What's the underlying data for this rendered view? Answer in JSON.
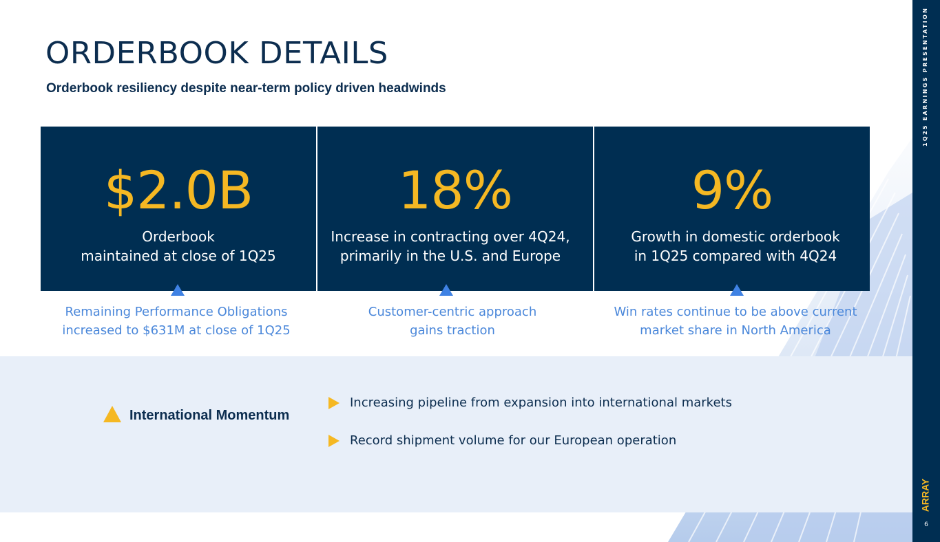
{
  "title": "ORDERBOOK DETAILS",
  "subtitle": "Orderbook resiliency despite near-term policy driven headwinds",
  "cards": [
    {
      "value": "$2.0B",
      "line1": "Orderbook",
      "line2": "maintained at close of 1Q25",
      "note1": "Remaining Performance Obligations",
      "note2": "increased to $631M  at close of 1Q25"
    },
    {
      "value": "18%",
      "line1": "Increase in contracting over 4Q24,",
      "line2": "primarily in the U.S. and Europe",
      "note1": "Customer-centric approach",
      "note2": "gains traction"
    },
    {
      "value": "9%",
      "line1": "Growth in domestic orderbook",
      "line2": "in 1Q25 compared with 4Q24",
      "note1": "Win rates continue to be above current",
      "note2": "market share in North America"
    }
  ],
  "international": {
    "label": "International Momentum",
    "bullets": [
      "Increasing pipeline from expansion into international markets",
      "Record shipment volume for our European operation"
    ]
  },
  "sidebar": {
    "vertical_text": "1Q25 EARNINGS PRESENTATION",
    "logo_text": "ARRAY",
    "page_number": "6"
  },
  "colors": {
    "navy": "#002e52",
    "gold": "#f5b823",
    "blue_accent": "#3f82e4",
    "light_band": "#e8eff9"
  }
}
